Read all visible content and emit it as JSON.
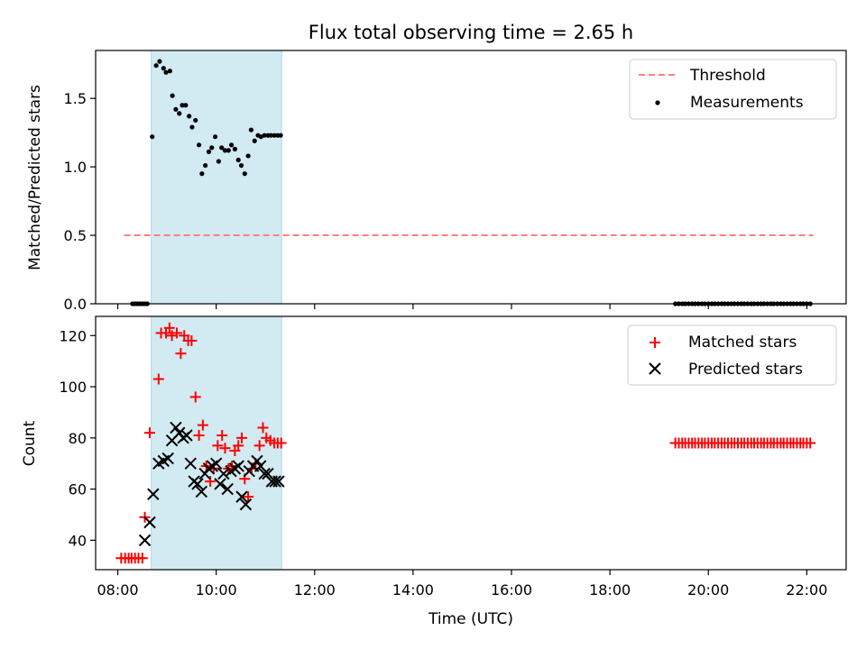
{
  "chart_data": {
    "title": "Flux total observing time = 2.65 h",
    "xlabel": "Time (UTC)",
    "x_unit": "hours UTC",
    "xlim": [
      7.55,
      22.8
    ],
    "x_ticks": [
      8,
      10,
      12,
      14,
      16,
      18,
      20,
      22
    ],
    "x_tick_labels": [
      "08:00",
      "10:00",
      "12:00",
      "14:00",
      "16:00",
      "18:00",
      "20:00",
      "22:00"
    ],
    "colors": {
      "threshold": "#ff7f7f",
      "measurements": "#000000",
      "matched": "#ff0000",
      "predicted": "#000000",
      "span": "#add8e6"
    },
    "observing_span": [
      8.68,
      11.33
    ],
    "panels": [
      {
        "type": "scatter",
        "ylabel": "Matched/Predicted stars",
        "ylim": [
          0,
          1.85
        ],
        "y_ticks": [
          "0.0",
          "0.5",
          "1.0",
          "1.5"
        ],
        "legend": [
          "Threshold",
          "Measurements"
        ],
        "legend_position": "top-right",
        "series": [
          {
            "name": "Threshold",
            "kind": "line",
            "style": "dashed",
            "x": [
              8.13,
              22.13
            ],
            "y": [
              0.5,
              0.5
            ]
          },
          {
            "name": "Measurements",
            "kind": "scatter",
            "marker": "dot",
            "x": [
              8.3,
              8.35,
              8.4,
              8.45,
              8.5,
              8.55,
              8.6,
              8.7,
              8.78,
              8.85,
              8.93,
              8.98,
              9.06,
              9.11,
              9.18,
              9.25,
              9.31,
              9.38,
              9.45,
              9.51,
              9.58,
              9.65,
              9.71,
              9.78,
              9.85,
              9.91,
              9.98,
              10.05,
              10.11,
              10.18,
              10.25,
              10.31,
              10.38,
              10.45,
              10.51,
              10.58,
              10.65,
              10.71,
              10.78,
              10.85,
              10.91,
              10.98,
              11.05,
              11.11,
              11.18,
              11.25,
              11.31,
              19.33,
              19.4,
              19.47,
              19.53,
              19.6,
              19.67,
              19.73,
              19.8,
              19.87,
              19.93,
              20.0,
              20.07,
              20.13,
              20.2,
              20.27,
              20.33,
              20.4,
              20.47,
              20.53,
              20.6,
              20.67,
              20.73,
              20.8,
              20.87,
              20.93,
              21.0,
              21.07,
              21.13,
              21.2,
              21.27,
              21.33,
              21.4,
              21.47,
              21.53,
              21.6,
              21.67,
              21.73,
              21.8,
              21.87,
              21.93,
              22.0,
              22.07
            ],
            "y": [
              0,
              0,
              0,
              0,
              0,
              0,
              0,
              1.22,
              1.74,
              1.77,
              1.72,
              1.69,
              1.7,
              1.52,
              1.42,
              1.39,
              1.45,
              1.45,
              1.37,
              1.29,
              1.34,
              1.16,
              0.95,
              1.01,
              1.11,
              1.14,
              1.22,
              1.04,
              1.14,
              1.12,
              1.12,
              1.16,
              1.13,
              1.05,
              1.01,
              0.95,
              1.08,
              1.27,
              1.19,
              1.23,
              1.22,
              1.23,
              1.23,
              1.23,
              1.23,
              1.23,
              1.23,
              0,
              0,
              0,
              0,
              0,
              0,
              0,
              0,
              0,
              0,
              0,
              0,
              0,
              0,
              0,
              0,
              0,
              0,
              0,
              0,
              0,
              0,
              0,
              0,
              0,
              0,
              0,
              0,
              0,
              0,
              0,
              0,
              0,
              0,
              0,
              0,
              0,
              0,
              0,
              0,
              0,
              0
            ]
          }
        ]
      },
      {
        "type": "scatter",
        "ylabel": "Count",
        "ylim": [
          28.5,
          127.5
        ],
        "y_ticks": [
          "40",
          "60",
          "80",
          "100",
          "120"
        ],
        "legend": [
          "Matched stars",
          "Predicted stars"
        ],
        "legend_position": "top-right",
        "series": [
          {
            "name": "Matched stars",
            "kind": "scatter",
            "marker": "plus",
            "x": [
              8.07,
              8.15,
              8.22,
              8.28,
              8.35,
              8.42,
              8.5,
              8.55,
              8.65,
              8.83,
              8.88,
              8.98,
              9.05,
              9.1,
              9.2,
              9.28,
              9.35,
              9.43,
              9.5,
              9.58,
              9.65,
              9.73,
              9.8,
              9.88,
              9.95,
              10.03,
              10.12,
              10.18,
              10.25,
              10.32,
              10.38,
              10.45,
              10.52,
              10.58,
              10.65,
              10.72,
              10.8,
              10.88,
              10.95,
              11.02,
              11.1,
              11.18,
              11.25,
              11.32,
              19.33,
              19.4,
              19.47,
              19.53,
              19.6,
              19.67,
              19.73,
              19.8,
              19.87,
              19.93,
              20.0,
              20.07,
              20.13,
              20.2,
              20.27,
              20.33,
              20.4,
              20.47,
              20.53,
              20.6,
              20.67,
              20.73,
              20.8,
              20.87,
              20.93,
              21.0,
              21.07,
              21.13,
              21.2,
              21.27,
              21.33,
              21.4,
              21.47,
              21.53,
              21.6,
              21.67,
              21.73,
              21.8,
              21.87,
              21.93,
              22.0,
              22.07
            ],
            "y": [
              33,
              33,
              33,
              33,
              33,
              33,
              33,
              49,
              82,
              103,
              121,
              121,
              123,
              120,
              121,
              113,
              120,
              118,
              118,
              96,
              81,
              85,
              69,
              63,
              68,
              77,
              81,
              76,
              68,
              69,
              75,
              77,
              80,
              64,
              57,
              68,
              70,
              77,
              84,
              80,
              79,
              78,
              78,
              78,
              78,
              78,
              78,
              78,
              78,
              78,
              78,
              78,
              78,
              78,
              78,
              78,
              78,
              78,
              78,
              78,
              78,
              78,
              78,
              78,
              78,
              78,
              78,
              78,
              78,
              78,
              78,
              78,
              78,
              78,
              78,
              78,
              78,
              78,
              78,
              78,
              78,
              78,
              78,
              78,
              78,
              78
            ]
          },
          {
            "name": "Predicted stars",
            "kind": "scatter",
            "marker": "x",
            "x": [
              8.55,
              8.65,
              8.72,
              8.83,
              8.93,
              9.02,
              9.1,
              9.18,
              9.25,
              9.33,
              9.4,
              9.48,
              9.55,
              9.62,
              9.7,
              9.77,
              9.85,
              9.92,
              10.0,
              10.08,
              10.15,
              10.23,
              10.3,
              10.38,
              10.45,
              10.52,
              10.6,
              10.67,
              10.75,
              10.83,
              10.9,
              10.98,
              11.05,
              11.13,
              11.2,
              11.27
            ],
            "y": [
              40,
              47,
              58,
              70,
              71,
              72,
              79,
              84,
              82,
              80,
              81,
              70,
              63,
              62,
              59,
              66,
              68,
              69,
              70,
              62,
              66,
              60,
              67,
              68,
              69,
              57,
              54,
              67,
              69,
              71,
              69,
              66,
              66,
              63,
              63,
              63
            ]
          }
        ]
      }
    ]
  }
}
